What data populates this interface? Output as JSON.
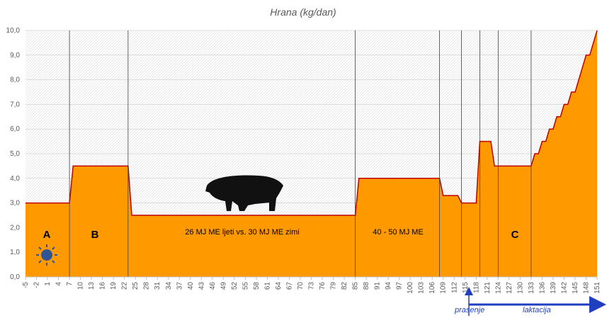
{
  "chart_data": {
    "type": "area",
    "title": "Hrana (kg/dan)",
    "x": [
      -5,
      7,
      8,
      23,
      24,
      85,
      86,
      108,
      109,
      113,
      114,
      118,
      119,
      122,
      123,
      133,
      134,
      135,
      136,
      137,
      138,
      139,
      140,
      141,
      142,
      143,
      144,
      145,
      146,
      147,
      148,
      149,
      150,
      151
    ],
    "values": [
      3.0,
      3.0,
      4.5,
      4.5,
      2.5,
      2.5,
      4.0,
      4.0,
      3.3,
      3.3,
      3.0,
      3.0,
      5.5,
      5.5,
      4.5,
      4.5,
      5.0,
      5.0,
      5.5,
      5.5,
      6.0,
      6.0,
      6.5,
      6.5,
      7.0,
      7.0,
      7.5,
      7.5,
      8.0,
      8.5,
      9.0,
      9.0,
      9.5,
      10.0
    ],
    "color": "#ff9900",
    "line_color": "#c00000",
    "xlim": [
      -5,
      151
    ],
    "xticks": [
      -5,
      -2,
      1,
      4,
      7,
      10,
      13,
      16,
      19,
      22,
      25,
      28,
      31,
      34,
      37,
      40,
      43,
      46,
      49,
      52,
      55,
      58,
      61,
      64,
      67,
      70,
      73,
      76,
      79,
      82,
      85,
      88,
      91,
      94,
      97,
      100,
      103,
      106,
      109,
      112,
      115,
      118,
      121,
      124,
      127,
      130,
      133,
      136,
      139,
      142,
      145,
      148,
      151
    ],
    "ylim": [
      0,
      10
    ],
    "yticks": [
      {
        "value": 0,
        "label": "0,0"
      },
      {
        "value": 1,
        "label": "1,0"
      },
      {
        "value": 2,
        "label": "2,0"
      },
      {
        "value": 3,
        "label": "3,0"
      },
      {
        "value": 4,
        "label": "4,0"
      },
      {
        "value": 5,
        "label": "5,0"
      },
      {
        "value": 6,
        "label": "6,0"
      },
      {
        "value": 7,
        "label": "7,0"
      },
      {
        "value": 8,
        "label": "8,0"
      },
      {
        "value": 9,
        "label": "9,0"
      },
      {
        "value": 10,
        "label": "10,0"
      }
    ],
    "dividers": [
      7,
      23,
      85,
      108,
      114,
      119,
      124,
      133
    ],
    "annotations": [
      "A",
      "B",
      "26 MJ ME ljeti vs. 30 MJ ME zimi",
      "40 - 50 MJ ME",
      "C",
      "prasenje",
      "laktacija"
    ],
    "grid": true
  }
}
